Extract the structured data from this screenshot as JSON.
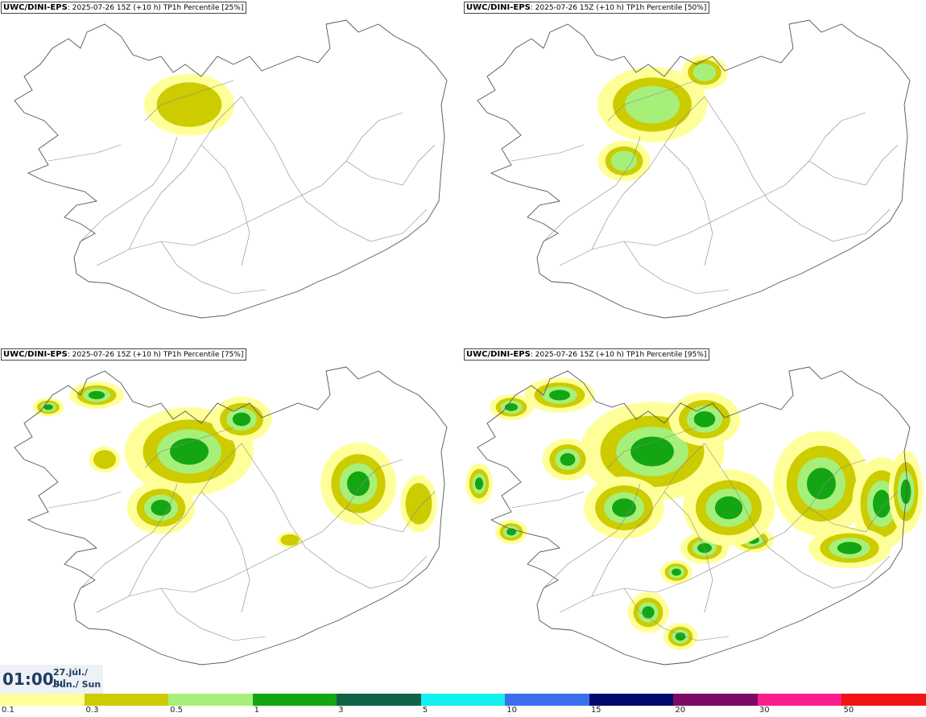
{
  "panels": [
    {
      "model": "UWC/DINI-EPS",
      "run": "2025-07-26 15Z",
      "lead": "(+10 h)",
      "field": "TP1h Percentile",
      "percentile": "[25%]"
    },
    {
      "model": "UWC/DINI-EPS",
      "run": "2025-07-26 15Z",
      "lead": "(+10 h)",
      "field": "TP1h Percentile",
      "percentile": "[50%]"
    },
    {
      "model": "UWC/DINI-EPS",
      "run": "2025-07-26 15Z",
      "lead": "(+10 h)",
      "field": "TP1h Percentile",
      "percentile": "[75%]"
    },
    {
      "model": "UWC/DINI-EPS",
      "run": "2025-07-26 15Z",
      "lead": "(+10 h)",
      "field": "TP1h Percentile",
      "percentile": "[95%]"
    }
  ],
  "valid_time": {
    "time": "01:00",
    "date_line1": "27.júl./ Jul",
    "date_line2": "Sun./ Sun"
  },
  "legend": {
    "colors": [
      "#ffff99",
      "#cccc00",
      "#a6f07a",
      "#14a514",
      "#0e6245",
      "#14f0f0",
      "#3c6ef0",
      "#000a6e",
      "#7d0a64",
      "#fa1e8c",
      "#f01414"
    ],
    "tick_labels": [
      "0.1",
      "0.3",
      "0.5",
      "1",
      "3",
      "5",
      "10",
      "15",
      "20",
      "30",
      "50"
    ]
  },
  "precip_intensity": [
    0.25,
    0.5,
    0.75,
    0.95
  ]
}
